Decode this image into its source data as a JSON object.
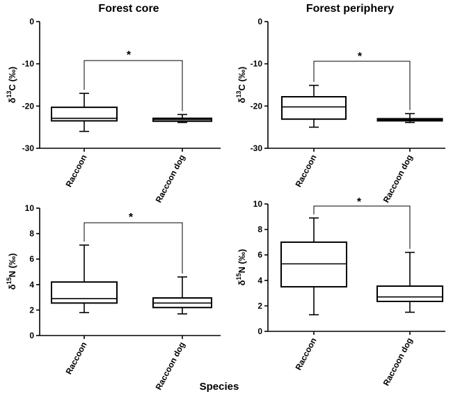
{
  "figure": {
    "col_titles": [
      "Forest core",
      "Forest periphery"
    ],
    "xlabel": "Species"
  },
  "chart_data": [
    {
      "type": "box",
      "title": "Forest core",
      "ylabel_main": "δ",
      "ylabel_sup": "13",
      "ylabel_rest": "C (‰)",
      "categories": [
        "Raccoon",
        "Raccoon dog"
      ],
      "ylim": [
        -30,
        0
      ],
      "yticks": [
        0,
        -10,
        -20,
        -30
      ],
      "boxes": [
        {
          "min": -26.0,
          "q1": -23.5,
          "median": -22.9,
          "q3": -20.3,
          "max": -17.0
        },
        {
          "min": -23.9,
          "q1": -23.6,
          "median": -23.2,
          "q3": -22.9,
          "max": -22.0
        }
      ],
      "significance": "*"
    },
    {
      "type": "box",
      "title": "Forest periphery",
      "ylabel_main": "δ",
      "ylabel_sup": "13",
      "ylabel_rest": "C (‰)",
      "categories": [
        "Raccoon",
        "Raccoon dog"
      ],
      "ylim": [
        -30,
        0
      ],
      "yticks": [
        0,
        -10,
        -20,
        -30
      ],
      "boxes": [
        {
          "min": -25.0,
          "q1": -23.1,
          "median": -20.2,
          "q3": -17.8,
          "max": -15.1
        },
        {
          "min": -23.9,
          "q1": -23.5,
          "median": -23.3,
          "q3": -23.0,
          "max": -21.8
        }
      ],
      "significance": "*"
    },
    {
      "type": "box",
      "title": "",
      "ylabel_main": "δ",
      "ylabel_sup": "15",
      "ylabel_rest": "N (‰)",
      "categories": [
        "Raccoon",
        "Raccoon dog"
      ],
      "ylim": [
        0,
        10
      ],
      "yticks": [
        0,
        2,
        4,
        6,
        8,
        10
      ],
      "boxes": [
        {
          "min": 1.8,
          "q1": 2.55,
          "median": 2.9,
          "q3": 4.2,
          "max": 7.1
        },
        {
          "min": 1.7,
          "q1": 2.2,
          "median": 2.55,
          "q3": 2.95,
          "max": 4.6
        }
      ],
      "significance": "*"
    },
    {
      "type": "box",
      "title": "",
      "ylabel_main": "δ",
      "ylabel_sup": "15",
      "ylabel_rest": "N (‰)",
      "categories": [
        "Raccoon",
        "Raccoon dog"
      ],
      "ylim": [
        0,
        10
      ],
      "yticks": [
        0,
        2,
        4,
        6,
        8,
        10
      ],
      "boxes": [
        {
          "min": 1.3,
          "q1": 3.5,
          "median": 5.3,
          "q3": 7.0,
          "max": 8.9
        },
        {
          "min": 1.5,
          "q1": 2.35,
          "median": 2.7,
          "q3": 3.55,
          "max": 6.2
        }
      ],
      "significance": "*"
    }
  ]
}
